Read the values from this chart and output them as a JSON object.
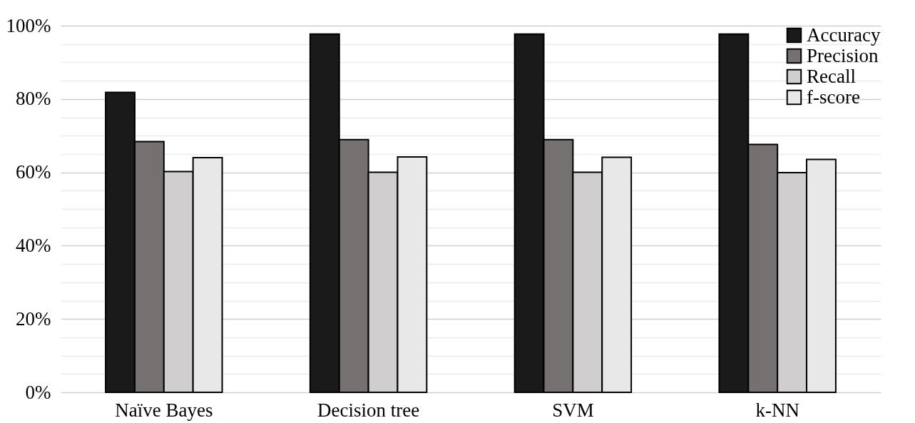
{
  "chart_data": {
    "type": "bar",
    "categories": [
      "Naïve Bayes",
      "Decision tree",
      "SVM",
      "k-NN"
    ],
    "series": [
      {
        "name": "Accuracy",
        "color": "#1a1a1a",
        "values": [
          81.8,
          97.7,
          97.7,
          97.7
        ]
      },
      {
        "name": "Precision",
        "color": "#767171",
        "values": [
          68.4,
          68.9,
          68.9,
          67.6
        ]
      },
      {
        "name": "Recall",
        "color": "#d0cece",
        "values": [
          60.2,
          60.0,
          60.0,
          59.9
        ]
      },
      {
        "name": "f-score",
        "color": "#e8e8e8",
        "values": [
          64.0,
          64.2,
          64.1,
          63.5
        ]
      }
    ],
    "ylim": [
      0,
      100
    ],
    "yticks": [
      {
        "value": 0,
        "label": "0%"
      },
      {
        "value": 5,
        "label": null
      },
      {
        "value": 10,
        "label": null
      },
      {
        "value": 15,
        "label": null
      },
      {
        "value": 20,
        "label": "20%"
      },
      {
        "value": 25,
        "label": null
      },
      {
        "value": 30,
        "label": null
      },
      {
        "value": 35,
        "label": null
      },
      {
        "value": 40,
        "label": "40%"
      },
      {
        "value": 45,
        "label": null
      },
      {
        "value": 50,
        "label": null
      },
      {
        "value": 55,
        "label": null
      },
      {
        "value": 60,
        "label": "60%"
      },
      {
        "value": 65,
        "label": null
      },
      {
        "value": 70,
        "label": null
      },
      {
        "value": 75,
        "label": null
      },
      {
        "value": 80,
        "label": "80%"
      },
      {
        "value": 85,
        "label": null
      },
      {
        "value": 90,
        "label": null
      },
      {
        "value": 95,
        "label": null
      },
      {
        "value": 100,
        "label": "100%"
      }
    ],
    "grid": true,
    "legend": "top right"
  }
}
